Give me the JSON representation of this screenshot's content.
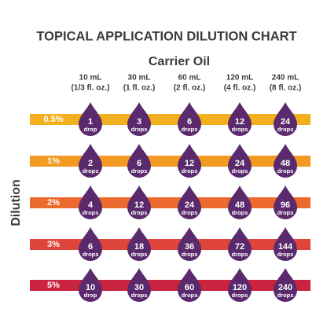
{
  "header": {
    "title": "TOPICAL APPLICATION DILUTION CHART",
    "column_title": "Carrier Oil",
    "row_title": "Dilution"
  },
  "columns": [
    {
      "volume": "10 mL",
      "ounces": "(1/3 fl. oz.)"
    },
    {
      "volume": "30 mL",
      "ounces": "(1 fl. oz.)"
    },
    {
      "volume": "60 mL",
      "ounces": "(2 fl. oz.)"
    },
    {
      "volume": "120 mL",
      "ounces": "(4 fl. oz.)"
    },
    {
      "volume": "240 mL",
      "ounces": "(8 fl. oz.)"
    }
  ],
  "rows": [
    {
      "label": "0.5%",
      "color": "#f2b01e",
      "cells": [
        {
          "count": 1,
          "unit": "drop"
        },
        {
          "count": 3,
          "unit": "drops"
        },
        {
          "count": 6,
          "unit": "drops"
        },
        {
          "count": 12,
          "unit": "drops"
        },
        {
          "count": 24,
          "unit": "drops"
        }
      ]
    },
    {
      "label": "1%",
      "color": "#f39a22",
      "cells": [
        {
          "count": 2,
          "unit": "drops"
        },
        {
          "count": 6,
          "unit": "drops"
        },
        {
          "count": 12,
          "unit": "drops"
        },
        {
          "count": 24,
          "unit": "drops"
        },
        {
          "count": 48,
          "unit": "drops"
        }
      ]
    },
    {
      "label": "2%",
      "color": "#ec6a2e",
      "cells": [
        {
          "count": 4,
          "unit": "drops"
        },
        {
          "count": 12,
          "unit": "drops"
        },
        {
          "count": 24,
          "unit": "drops"
        },
        {
          "count": 48,
          "unit": "drops"
        },
        {
          "count": 96,
          "unit": "drops"
        }
      ]
    },
    {
      "label": "3%",
      "color": "#e0453b",
      "cells": [
        {
          "count": 6,
          "unit": "drops"
        },
        {
          "count": 18,
          "unit": "drops"
        },
        {
          "count": 36,
          "unit": "drops"
        },
        {
          "count": 72,
          "unit": "drops"
        },
        {
          "count": 144,
          "unit": "drops"
        }
      ]
    },
    {
      "label": "5%",
      "color": "#c9233f",
      "cells": [
        {
          "count": 10,
          "unit": "drop"
        },
        {
          "count": 30,
          "unit": "drops"
        },
        {
          "count": 60,
          "unit": "drops"
        },
        {
          "count": 120,
          "unit": "drops"
        },
        {
          "count": 240,
          "unit": "drops"
        }
      ]
    }
  ]
}
